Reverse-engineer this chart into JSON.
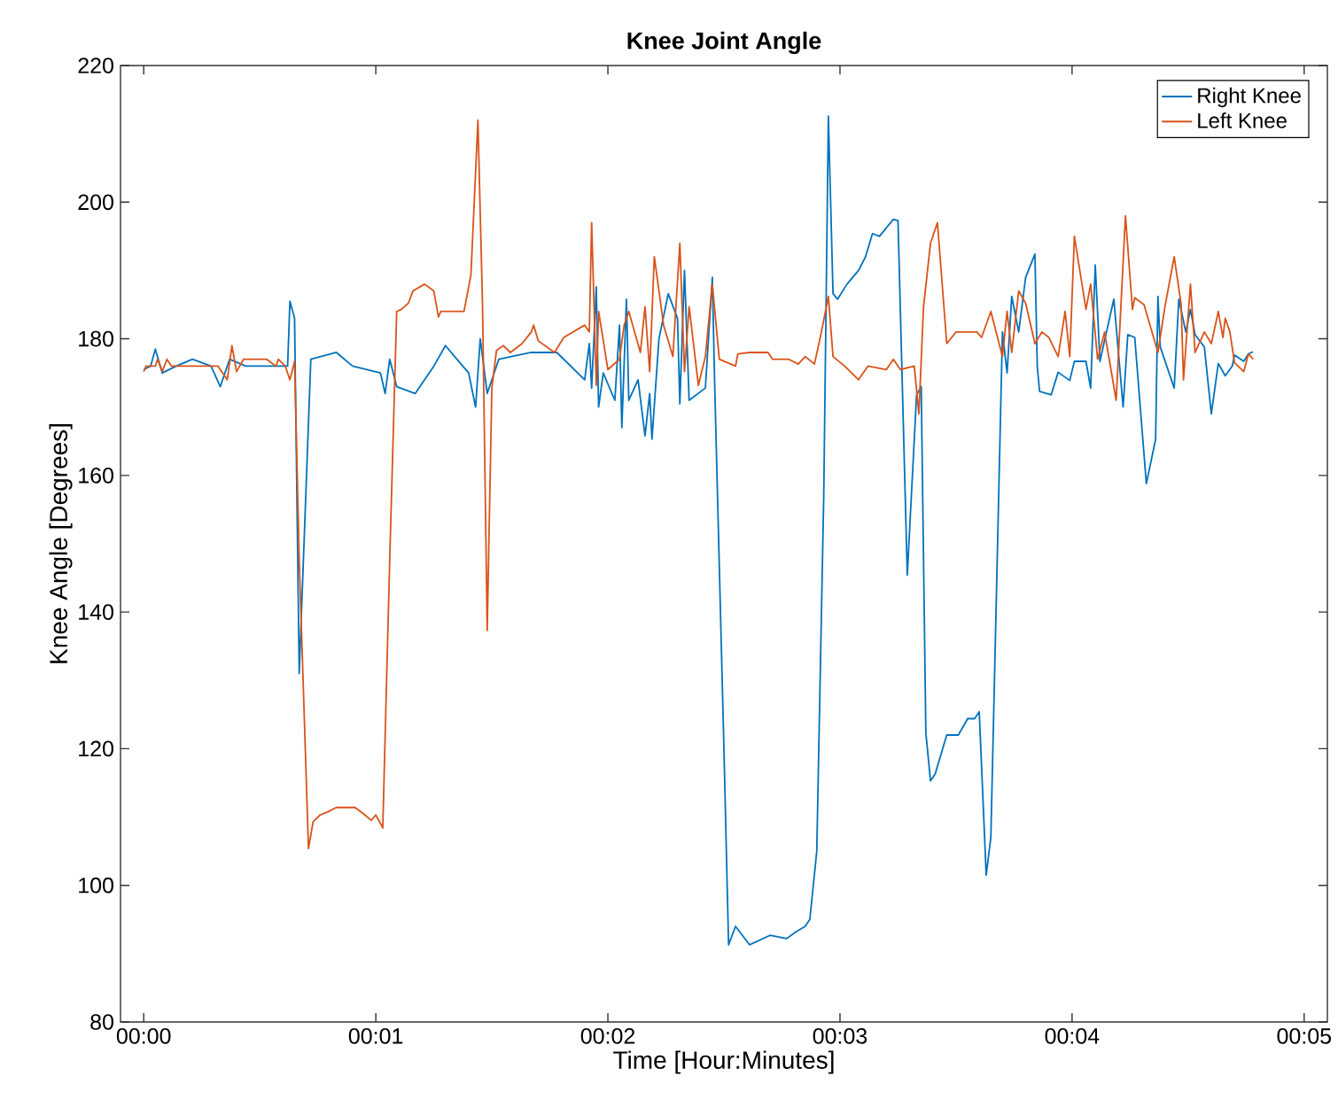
{
  "chart_data": {
    "type": "line",
    "title": "Knee Joint Angle",
    "xlabel": "Time [Hour:Minutes]",
    "ylabel": "Knee Angle [Degrees]",
    "xlim": [
      -0.1,
      5.1
    ],
    "ylim": [
      80,
      220
    ],
    "xticks": [
      {
        "value": 0,
        "label": "00:00"
      },
      {
        "value": 1,
        "label": "00:01"
      },
      {
        "value": 2,
        "label": "00:02"
      },
      {
        "value": 3,
        "label": "00:03"
      },
      {
        "value": 4,
        "label": "00:04"
      },
      {
        "value": 5,
        "label": "00:05"
      }
    ],
    "yticks": [
      80,
      100,
      120,
      140,
      160,
      180,
      200,
      220
    ],
    "grid": false,
    "legend": "top right",
    "marker": "none",
    "line_style": "solid",
    "series": [
      {
        "name": "Right Knee",
        "color": "#0072bd",
        "x": [
          0.0,
          0.03,
          0.05,
          0.08,
          0.14,
          0.21,
          0.29,
          0.33,
          0.37,
          0.44,
          0.62,
          0.63,
          0.65,
          0.67,
          0.72,
          0.83,
          0.9,
          1.02,
          1.04,
          1.06,
          1.09,
          1.17,
          1.25,
          1.3,
          1.4,
          1.43,
          1.45,
          1.48,
          1.53,
          1.67,
          1.78,
          1.9,
          1.92,
          1.93,
          1.95,
          1.96,
          1.98,
          2.03,
          2.05,
          2.06,
          2.08,
          2.09,
          2.13,
          2.16,
          2.18,
          2.19,
          2.22,
          2.26,
          2.3,
          2.31,
          2.33,
          2.35,
          2.42,
          2.45,
          2.46,
          2.5,
          2.52,
          2.55,
          2.61,
          2.7,
          2.77,
          2.81,
          2.85,
          2.87,
          2.9,
          2.93,
          2.95,
          2.97,
          2.99,
          3.03,
          3.08,
          3.11,
          3.14,
          3.17,
          3.23,
          3.25,
          3.29,
          3.33,
          3.35,
          3.37,
          3.39,
          3.41,
          3.46,
          3.51,
          3.55,
          3.58,
          3.6,
          3.63,
          3.65,
          3.7,
          3.72,
          3.74,
          3.77,
          3.8,
          3.84,
          3.85,
          3.86,
          3.91,
          3.94,
          3.99,
          4.01,
          4.06,
          4.08,
          4.1,
          4.12,
          4.18,
          4.22,
          4.24,
          4.27,
          4.32,
          4.36,
          4.37,
          4.38,
          4.44,
          4.46,
          4.49,
          4.51,
          4.53,
          4.57,
          4.6,
          4.63,
          4.66,
          4.69,
          4.7,
          4.74,
          4.76,
          4.78
        ],
        "values": [
          175.5,
          176,
          178.5,
          175,
          176,
          177,
          176,
          173,
          177,
          176,
          176,
          185.5,
          183,
          131,
          177,
          178,
          176,
          175,
          172,
          177,
          173,
          172,
          176,
          179,
          175,
          170,
          180,
          172,
          177,
          178,
          178,
          174,
          179.3,
          172.8,
          187.6,
          170,
          175,
          171,
          182,
          167,
          185.8,
          171,
          174,
          165.8,
          172,
          165.3,
          180,
          186.6,
          183,
          170.5,
          190,
          171,
          172.8,
          189,
          173.6,
          120,
          91.3,
          94,
          91.3,
          92.7,
          92.2,
          93.2,
          94,
          95,
          105,
          157,
          212.6,
          186.6,
          185.8,
          188,
          190,
          192,
          195.4,
          195,
          197.5,
          197.3,
          145.4,
          171.8,
          173,
          122.3,
          115.3,
          116.3,
          122,
          122,
          124.4,
          124.4,
          125.4,
          101.5,
          107,
          181,
          175,
          186.2,
          181,
          189,
          192.4,
          176,
          172.3,
          171.8,
          175.1,
          173.9,
          176.7,
          176.7,
          172.8,
          190.8,
          176.7,
          185.8,
          170,
          180.6,
          180.2,
          158.8,
          165.3,
          186.2,
          178.8,
          172.8,
          185.8,
          181,
          184.3,
          180.6,
          178.8,
          169,
          176.4,
          174.6,
          176,
          177.6,
          176.7,
          177.8,
          178.1
        ]
      },
      {
        "name": "Left Knee",
        "color": "#d95319",
        "x": [
          0.0,
          0.01,
          0.05,
          0.06,
          0.08,
          0.1,
          0.12,
          0.32,
          0.36,
          0.38,
          0.4,
          0.43,
          0.53,
          0.57,
          0.58,
          0.61,
          0.63,
          0.65,
          0.67,
          0.71,
          0.73,
          0.76,
          0.79,
          0.83,
          0.91,
          0.95,
          0.98,
          1.0,
          1.03,
          1.06,
          1.09,
          1.11,
          1.14,
          1.16,
          1.21,
          1.25,
          1.27,
          1.28,
          1.38,
          1.41,
          1.44,
          1.46,
          1.48,
          1.5,
          1.52,
          1.55,
          1.58,
          1.63,
          1.67,
          1.68,
          1.7,
          1.77,
          1.81,
          1.9,
          1.92,
          1.93,
          1.95,
          1.96,
          2.0,
          2.05,
          2.07,
          2.09,
          2.14,
          2.16,
          2.18,
          2.2,
          2.24,
          2.28,
          2.31,
          2.33,
          2.35,
          2.39,
          2.42,
          2.45,
          2.48,
          2.55,
          2.56,
          2.61,
          2.69,
          2.71,
          2.78,
          2.82,
          2.85,
          2.89,
          2.92,
          2.95,
          2.97,
          3.02,
          3.08,
          3.12,
          3.2,
          3.23,
          3.26,
          3.32,
          3.34,
          3.36,
          3.39,
          3.42,
          3.46,
          3.5,
          3.59,
          3.61,
          3.65,
          3.7,
          3.72,
          3.74,
          3.77,
          3.8,
          3.84,
          3.87,
          3.9,
          3.94,
          3.97,
          3.99,
          4.01,
          4.06,
          4.08,
          4.11,
          4.14,
          4.19,
          4.23,
          4.26,
          4.27,
          4.31,
          4.37,
          4.4,
          4.44,
          4.47,
          4.48,
          4.51,
          4.53,
          4.57,
          4.6,
          4.63,
          4.65,
          4.66,
          4.68,
          4.7,
          4.74,
          4.76,
          4.78
        ],
        "values": [
          175.2,
          176,
          176,
          177,
          175.2,
          177,
          176,
          176,
          174,
          179,
          175.2,
          177,
          177,
          176,
          177,
          176,
          174,
          176.7,
          147.7,
          105.4,
          109.3,
          110.3,
          110.7,
          111.4,
          111.4,
          110.4,
          109.5,
          110.3,
          108.4,
          147.7,
          184,
          184.3,
          185.2,
          187,
          188,
          187,
          183.2,
          184,
          184,
          189.4,
          212,
          184.7,
          137.3,
          172.8,
          178.3,
          179,
          178,
          179.3,
          181,
          182,
          179.7,
          178,
          180.2,
          182,
          181,
          197,
          173.2,
          184,
          175.5,
          177,
          182,
          184,
          178,
          184.7,
          175.2,
          192,
          182,
          177.4,
          194,
          175.2,
          184.7,
          173.2,
          177.4,
          188,
          177,
          176,
          177.8,
          178,
          178,
          177,
          177,
          176.3,
          177.4,
          176.3,
          181,
          186.2,
          177.4,
          176,
          174,
          176,
          175.5,
          177,
          175.5,
          176,
          169,
          184.7,
          194,
          197,
          179.3,
          181,
          181,
          180.2,
          184,
          177.4,
          184,
          178,
          187,
          185.2,
          179.3,
          181,
          180.2,
          177.4,
          184,
          177.4,
          195,
          184.3,
          188,
          177,
          181,
          171,
          198,
          184.3,
          186,
          185,
          178,
          184.7,
          192,
          185,
          174,
          188,
          178,
          181,
          179.3,
          184,
          180.2,
          183,
          181,
          176.5,
          175.2,
          177.8,
          177
        ]
      }
    ]
  }
}
